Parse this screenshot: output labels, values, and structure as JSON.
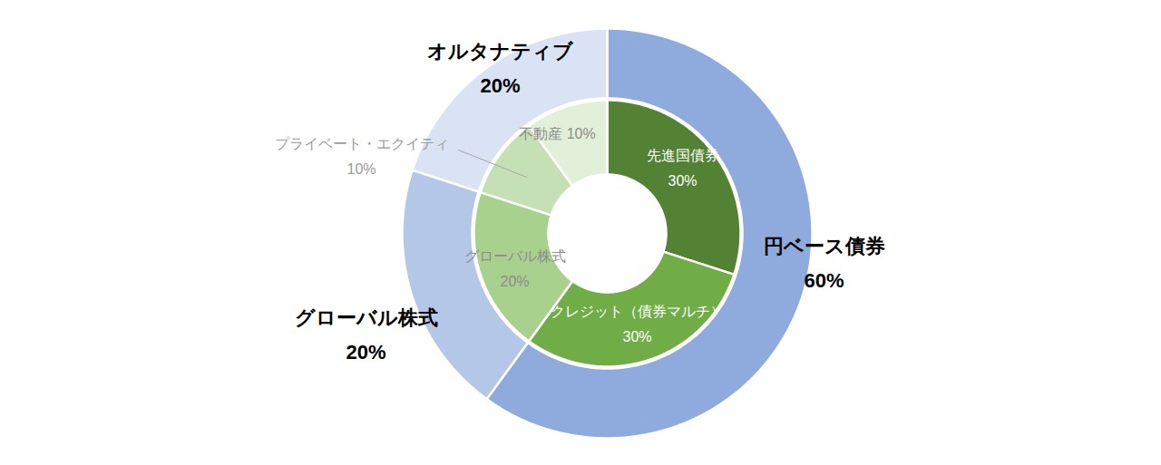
{
  "chart_data": {
    "type": "donut",
    "data_labels": true,
    "series": [
      {
        "categories": [
          "円ベース債券",
          "グローバル株式",
          "オルタナティブ"
        ],
        "values": [
          60,
          20,
          20
        ],
        "value_labels": [
          "60%",
          "20%",
          "20%"
        ],
        "colors": [
          "#8faadc",
          "#b4c7e7",
          "#dae3f3"
        ]
      },
      {
        "categories": [
          "先進国債券",
          "クレジット（債券マルチ）",
          "グローバル株式",
          "プライベート・エクイティ",
          "不動産"
        ],
        "values": [
          30,
          30,
          20,
          10,
          10
        ],
        "value_labels": [
          "30%",
          "30%",
          "20%",
          "10%",
          "10%"
        ],
        "colors": [
          "#548235",
          "#70ad47",
          "#a9d18e",
          "#c5e0b4",
          "#e2f0d9"
        ]
      }
    ]
  }
}
